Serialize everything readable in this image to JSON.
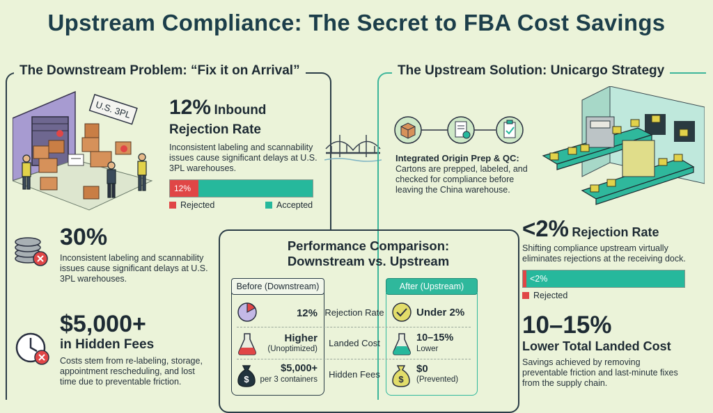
{
  "title": "Upstream Compliance: The Secret to FBA Cost Savings",
  "left": {
    "heading": "The Downstream Problem: “Fix it on Arrival”",
    "warehouse_sign": "U.S. 3PL",
    "stat1": {
      "value": "12%",
      "label_line1": "Inbound",
      "label_line2": "Rejection Rate",
      "desc": "Inconsistent labeling and scannability issues cause significant delays at U.S. 3PL warehouses.",
      "bar_label": "12%",
      "legend_rejected": "Rejected",
      "legend_accepted": "Accepted"
    },
    "stat2": {
      "value": "30%",
      "desc": "Inconsistent labeling and scannability issues cause significant delays at U.S. 3PL warehouses."
    },
    "stat3": {
      "value": "$5,000+",
      "label": "in Hidden Fees",
      "desc": "Costs stem from re-labeling, storage, appointment rescheduling, and lost time due to preventable friction."
    }
  },
  "right": {
    "heading": "The Upstream Solution: Unicargo Strategy",
    "prep_title": "Integrated Origin Prep & QC:",
    "prep_desc": "Cartons are prepped, labeled, and checked for compliance before leaving the China warehouse.",
    "stat1": {
      "value": "<2%",
      "label": "Rejection Rate",
      "desc": "Shifting compliance upstream virtually eliminates rejections at the receiving dock.",
      "bar_label": "<2%",
      "legend_rejected": "Rejected"
    },
    "stat2": {
      "value": "10–15%",
      "label": "Lower Total Landed Cost",
      "desc": "Savings achieved by removing preventable friction and last-minute fixes from the supply chain."
    }
  },
  "comparison": {
    "title_line1": "Performance Comparison:",
    "title_line2": "Downstream vs. Upstream",
    "before_label": "Before (Downstream)",
    "after_label": "After (Upstream)",
    "rows": [
      {
        "metric": "Rejection Rate",
        "before_main": "12%",
        "before_sub": "",
        "after_main": "Under 2%",
        "after_sub": ""
      },
      {
        "metric": "Landed Cost",
        "before_main": "Higher",
        "before_sub": "(Unoptimized)",
        "after_main": "10–15%",
        "after_sub": "Lower"
      },
      {
        "metric": "Hidden Fees",
        "before_main": "$5,000+",
        "before_sub": "per 3 containers",
        "after_main": "$0",
        "after_sub": "(Prevented)"
      }
    ]
  },
  "colors": {
    "accent_green": "#26b89c",
    "reject_red": "#e04646",
    "dark_navy": "#1c3e4a",
    "background": "#ebf3d9"
  }
}
